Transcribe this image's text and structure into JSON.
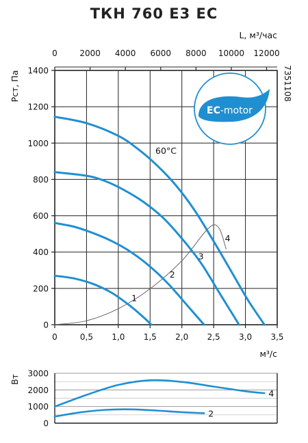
{
  "title": "ТКН 760 Е3 ЕС",
  "code": "7351108",
  "logo": {
    "text_bold": "EC",
    "text_rest": "-motor",
    "color": "#1f8fd1"
  },
  "colors": {
    "curve": "#1f8fd1",
    "system": "#666666",
    "grid": "#222222",
    "power_grid": "#999999"
  },
  "chart_data": [
    {
      "type": "line",
      "xlabel": "м³/с",
      "ylabel": "Рст, Па",
      "x2label": "L, м³/час",
      "xlim": [
        0,
        3.5
      ],
      "ylim": [
        0,
        1400
      ],
      "x2lim": [
        0,
        12600
      ],
      "xticks": [
        "0",
        "0,5",
        "1,0",
        "1,5",
        "2,0",
        "2,5",
        "3,0",
        "3,5"
      ],
      "xtick_values": [
        0,
        0.5,
        1.0,
        1.5,
        2.0,
        2.5,
        3.0,
        3.5
      ],
      "yticks": [
        "0",
        "200",
        "400",
        "600",
        "800",
        "1000",
        "1200",
        "1400"
      ],
      "ytick_values": [
        0,
        200,
        400,
        600,
        800,
        1000,
        1200,
        1400
      ],
      "x2ticks": [
        "0",
        "2000",
        "4000",
        "6000",
        "8000",
        "10000",
        "12000"
      ],
      "x2tick_values": [
        0,
        2000,
        4000,
        6000,
        8000,
        10000,
        12000
      ],
      "grid": true,
      "temperature_label": "60°C",
      "series": [
        {
          "name": "1",
          "x": [
            0,
            0.3,
            0.6,
            0.9,
            1.2,
            1.4,
            1.52
          ],
          "y": [
            270,
            255,
            225,
            175,
            100,
            40,
            0
          ]
        },
        {
          "name": "2",
          "x": [
            0,
            0.3,
            0.6,
            0.9,
            1.2,
            1.5,
            1.8,
            2.1,
            2.35
          ],
          "y": [
            560,
            540,
            505,
            460,
            400,
            320,
            220,
            100,
            0
          ]
        },
        {
          "name": "3",
          "x": [
            0,
            0.5,
            0.8,
            1.1,
            1.4,
            1.7,
            2.0,
            2.3,
            2.6,
            2.9
          ],
          "y": [
            840,
            820,
            790,
            740,
            675,
            590,
            475,
            340,
            170,
            0
          ]
        },
        {
          "name": "4",
          "x": [
            0,
            0.5,
            1.0,
            1.3,
            1.6,
            1.9,
            2.2,
            2.5,
            2.8,
            3.05,
            3.3
          ],
          "y": [
            1145,
            1110,
            1040,
            970,
            880,
            770,
            630,
            460,
            280,
            130,
            0
          ]
        }
      ],
      "system_curve": {
        "x": [
          0,
          0.5,
          1.0,
          1.5,
          2.0,
          2.5,
          2.7
        ],
        "y": [
          0,
          22,
          88,
          198,
          352,
          550,
          415
        ]
      }
    },
    {
      "type": "line",
      "ylabel": "Вт",
      "xlim": [
        0,
        3.5
      ],
      "ylim": [
        0,
        3000
      ],
      "yticks": [
        "0",
        "1000",
        "2000",
        "3000"
      ],
      "ytick_values": [
        0,
        1000,
        2000,
        3000
      ],
      "grid": true,
      "series": [
        {
          "name": "4",
          "x": [
            0,
            0.5,
            1.0,
            1.5,
            2.0,
            2.5,
            3.0,
            3.3
          ],
          "y": [
            1000,
            1700,
            2300,
            2580,
            2480,
            2200,
            1920,
            1800
          ]
        },
        {
          "name": "2",
          "x": [
            0,
            0.4,
            0.8,
            1.2,
            1.6,
            2.0,
            2.35
          ],
          "y": [
            400,
            650,
            800,
            830,
            760,
            660,
            600
          ]
        }
      ]
    }
  ]
}
